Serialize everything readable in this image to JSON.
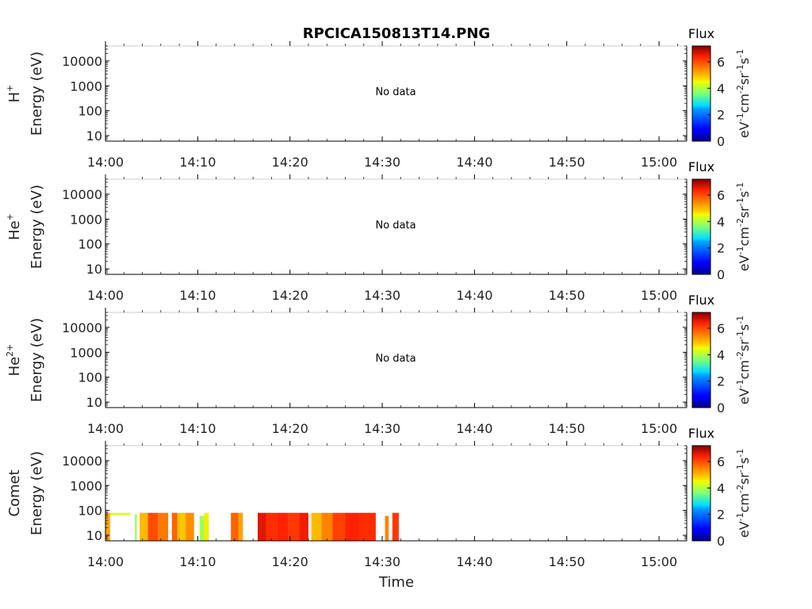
{
  "title": "RPCICA150813T14.PNG",
  "x_axis_label": "Time",
  "colorbar": {
    "label": "Flux",
    "unit": [
      "eV",
      "-1",
      "cm",
      "-2",
      "sr",
      "-1",
      "s",
      "-1"
    ],
    "ticks": [
      "0",
      "2",
      "4",
      "6"
    ],
    "min": 0,
    "max": 7.2,
    "colormap": "jet"
  },
  "colors": {
    "axis": "#000000",
    "tick_text": "#222222",
    "background": "#ffffff"
  },
  "chart_data": [
    {
      "type": "heatmap",
      "species_base": "H",
      "species_sup": "+",
      "ylabel": "Energy (eV)",
      "yscale": "log",
      "ylim": [
        6,
        40000
      ],
      "yticks": [
        "10",
        "100",
        "1000",
        "10000"
      ],
      "xticks": [
        "14:00",
        "14:10",
        "14:20",
        "14:30",
        "14:40",
        "14:50",
        "15:00"
      ],
      "xlim_minutes": [
        0,
        63
      ],
      "annotation": "No data",
      "cells": []
    },
    {
      "type": "heatmap",
      "species_base": "He",
      "species_sup": "+",
      "ylabel": "Energy (eV)",
      "yscale": "log",
      "ylim": [
        6,
        40000
      ],
      "yticks": [
        "10",
        "100",
        "1000",
        "10000"
      ],
      "xticks": [
        "14:00",
        "14:10",
        "14:20",
        "14:30",
        "14:40",
        "14:50",
        "15:00"
      ],
      "xlim_minutes": [
        0,
        63
      ],
      "annotation": "No data",
      "cells": []
    },
    {
      "type": "heatmap",
      "species_base": "He",
      "species_sup": "2+",
      "ylabel": "Energy (eV)",
      "yscale": "log",
      "ylim": [
        6,
        40000
      ],
      "yticks": [
        "10",
        "100",
        "1000",
        "10000"
      ],
      "xticks": [
        "14:00",
        "14:10",
        "14:20",
        "14:30",
        "14:40",
        "14:50",
        "15:00"
      ],
      "xlim_minutes": [
        0,
        63
      ],
      "annotation": "No data",
      "cells": []
    },
    {
      "type": "heatmap",
      "species_base": "Comet",
      "species_sup": "",
      "ylabel": "Energy (eV)",
      "yscale": "log",
      "ylim": [
        6,
        40000
      ],
      "yticks": [
        "10",
        "100",
        "1000",
        "10000"
      ],
      "xticks": [
        "14:00",
        "14:10",
        "14:20",
        "14:30",
        "14:40",
        "14:50",
        "15:00"
      ],
      "xlim_minutes": [
        0,
        63
      ],
      "annotation": "",
      "cells": [
        {
          "t0": 0.0,
          "t1": 0.5,
          "e0": 6,
          "e1": 80,
          "flux": 5.2
        },
        {
          "t0": 0.5,
          "t1": 2.7,
          "e0": 65,
          "e1": 80,
          "flux": 4.3
        },
        {
          "t0": 3.2,
          "t1": 3.4,
          "e0": 6,
          "e1": 70,
          "flux": 3.8
        },
        {
          "t0": 3.7,
          "t1": 4.6,
          "e0": 6,
          "e1": 80,
          "flux": 5.0
        },
        {
          "t0": 4.6,
          "t1": 5.7,
          "e0": 6,
          "e1": 80,
          "flux": 6.0
        },
        {
          "t0": 5.7,
          "t1": 6.8,
          "e0": 6,
          "e1": 80,
          "flux": 5.6
        },
        {
          "t0": 7.2,
          "t1": 7.8,
          "e0": 6,
          "e1": 80,
          "flux": 5.8
        },
        {
          "t0": 7.8,
          "t1": 8.7,
          "e0": 6,
          "e1": 80,
          "flux": 4.9
        },
        {
          "t0": 8.7,
          "t1": 9.6,
          "e0": 6,
          "e1": 80,
          "flux": 5.4
        },
        {
          "t0": 10.2,
          "t1": 10.7,
          "e0": 6,
          "e1": 60,
          "flux": 3.9
        },
        {
          "t0": 10.7,
          "t1": 11.2,
          "e0": 6,
          "e1": 80,
          "flux": 4.6
        },
        {
          "t0": 13.6,
          "t1": 14.4,
          "e0": 6,
          "e1": 80,
          "flux": 5.8
        },
        {
          "t0": 14.4,
          "t1": 14.9,
          "e0": 6,
          "e1": 80,
          "flux": 5.2
        },
        {
          "t0": 16.5,
          "t1": 17.4,
          "e0": 6,
          "e1": 80,
          "flux": 6.6
        },
        {
          "t0": 17.4,
          "t1": 18.6,
          "e0": 6,
          "e1": 80,
          "flux": 6.3
        },
        {
          "t0": 18.6,
          "t1": 19.8,
          "e0": 6,
          "e1": 80,
          "flux": 6.4
        },
        {
          "t0": 19.8,
          "t1": 21.0,
          "e0": 6,
          "e1": 80,
          "flux": 6.2
        },
        {
          "t0": 21.0,
          "t1": 22.0,
          "e0": 6,
          "e1": 80,
          "flux": 6.5
        },
        {
          "t0": 22.3,
          "t1": 23.4,
          "e0": 6,
          "e1": 80,
          "flux": 5.0
        },
        {
          "t0": 23.4,
          "t1": 24.6,
          "e0": 6,
          "e1": 80,
          "flux": 5.5
        },
        {
          "t0": 24.6,
          "t1": 26.0,
          "e0": 6,
          "e1": 80,
          "flux": 6.1
        },
        {
          "t0": 26.0,
          "t1": 27.5,
          "e0": 6,
          "e1": 80,
          "flux": 6.4
        },
        {
          "t0": 27.5,
          "t1": 29.3,
          "e0": 6,
          "e1": 80,
          "flux": 6.3
        },
        {
          "t0": 30.3,
          "t1": 30.7,
          "e0": 6,
          "e1": 60,
          "flux": 5.5
        },
        {
          "t0": 31.1,
          "t1": 31.8,
          "e0": 6,
          "e1": 80,
          "flux": 6.2
        }
      ]
    }
  ]
}
